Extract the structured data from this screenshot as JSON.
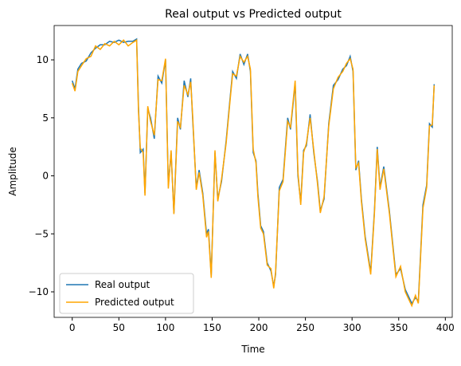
{
  "chart_data": {
    "type": "line",
    "title": "Real output vs Predicted output",
    "x_label": "Time",
    "y_label": "Amplitude",
    "x": [
      0,
      3,
      6,
      10,
      15,
      20,
      25,
      30,
      35,
      40,
      45,
      50,
      55,
      60,
      65,
      69,
      71,
      73,
      76,
      78,
      81,
      84,
      88,
      92,
      96,
      100,
      103,
      106,
      109,
      113,
      116,
      120,
      124,
      127,
      129,
      133,
      136,
      140,
      144,
      146,
      149,
      153,
      156,
      160,
      165,
      169,
      172,
      176,
      180,
      184,
      188,
      191,
      194,
      197,
      199,
      202,
      205,
      209,
      213,
      216,
      218,
      222,
      226,
      231,
      234,
      239,
      242,
      245,
      248,
      251,
      255,
      259,
      263,
      266,
      270,
      275,
      280,
      285,
      290,
      294,
      298,
      301,
      304,
      307,
      310,
      314,
      320,
      324,
      327,
      330,
      334,
      340,
      347,
      352,
      357,
      364,
      368,
      371,
      376,
      380,
      383,
      386,
      388
    ],
    "series": [
      {
        "name": "Real output",
        "color": "#1f77b4",
        "values": [
          8.2,
          7.5,
          9.2,
          9.7,
          9.9,
          10.6,
          11.0,
          11.3,
          11.3,
          11.6,
          11.5,
          11.7,
          11.5,
          11.6,
          11.6,
          11.8,
          6,
          2,
          2.3,
          -1.5,
          5.8,
          5,
          3.2,
          8.6,
          8,
          10,
          -0.8,
          2,
          -3.2,
          5,
          4,
          8.2,
          6.8,
          8.4,
          5,
          -1,
          0.5,
          -1.5,
          -5,
          -4.6,
          -8.6,
          2,
          -2,
          -0.5,
          3,
          6.5,
          9,
          8.4,
          10.5,
          9.6,
          10.5,
          9,
          2,
          1.3,
          -1.5,
          -4.3,
          -4.8,
          -7.5,
          -8.2,
          -9.5,
          -8.5,
          -1,
          -0.3,
          5,
          4,
          8,
          0,
          -2.3,
          2.2,
          2.6,
          5.3,
          2,
          -0.5,
          -3,
          -2,
          4.5,
          7.8,
          8.3,
          9.2,
          9.5,
          10.3,
          9,
          0.5,
          1.3,
          -2,
          -5.2,
          -8.3,
          -3,
          2.5,
          -1,
          0.8,
          -3,
          -8.5,
          -8,
          -9.8,
          -11,
          -10.5,
          -10.8,
          -2.5,
          -0.8,
          4.5,
          4.2,
          7.9
        ]
      },
      {
        "name": "Predicted output",
        "color": "#ffa500",
        "values": [
          8.0,
          7.3,
          9.0,
          9.5,
          10.1,
          10.3,
          11.2,
          10.9,
          11.4,
          11.2,
          11.6,
          11.3,
          11.7,
          11.2,
          11.5,
          11.7,
          5.6,
          2.4,
          2.0,
          -1.7,
          6.0,
          4.7,
          3.5,
          8.3,
          8.2,
          10.1,
          -1.1,
          2.2,
          -3.3,
          4.7,
          4.2,
          7.8,
          7.0,
          8.1,
          5.3,
          -1.2,
          0.3,
          -1.7,
          -5.3,
          -4.8,
          -8.8,
          2.2,
          -2.2,
          -0.3,
          2.8,
          6.3,
          8.8,
          8.6,
          10.3,
          9.8,
          10.3,
          9.2,
          2.3,
          1.1,
          -1.8,
          -4.5,
          -5.0,
          -7.7,
          -8.0,
          -9.7,
          -8.3,
          -1.3,
          -0.5,
          4.7,
          4.2,
          8.2,
          0.3,
          -2.5,
          2.0,
          2.8,
          5.0,
          2.2,
          -0.7,
          -3.2,
          -1.8,
          4.3,
          7.5,
          8.5,
          9.0,
          9.7,
          10.1,
          9.2,
          0.7,
          1.1,
          -2.2,
          -5.4,
          -8.5,
          -3.2,
          2.3,
          -1.2,
          0.6,
          -3.2,
          -8.7,
          -7.8,
          -10,
          -11.2,
          -10.3,
          -11,
          -2.8,
          -1.0,
          4.3,
          4.4,
          7.8
        ]
      }
    ],
    "xlim": [
      -19.4,
      407.4
    ],
    "ylim": [
      -12.2,
      12.96
    ],
    "xticks": [
      0,
      50,
      100,
      150,
      200,
      250,
      300,
      350,
      400
    ],
    "yticks": [
      {
        "value": -10,
        "label": "−10"
      },
      {
        "value": -5,
        "label": "−5"
      },
      0,
      5,
      10
    ],
    "legend": "lower left"
  }
}
